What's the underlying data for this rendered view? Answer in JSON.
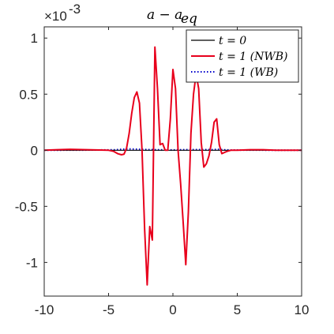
{
  "chart_data": {
    "type": "line",
    "title": "a − a_eq",
    "title_main": "a − a",
    "title_sub": "eq",
    "y_multiplier": "×10",
    "y_exponent": "-3",
    "xlim": [
      -10,
      10
    ],
    "ylim": [
      -1.3,
      1.1
    ],
    "x_ticks": [
      -10,
      -5,
      0,
      5,
      10
    ],
    "x_tick_labels": [
      "-10",
      "-5",
      "0",
      "5",
      "10"
    ],
    "y_ticks": [
      1,
      0.5,
      0,
      -0.5,
      -1
    ],
    "y_tick_labels": [
      "1",
      "0.5",
      "0",
      "-0.5",
      "-1"
    ],
    "grid": false,
    "legend_position": "top-right",
    "series": [
      {
        "name": "t = 0",
        "color": "#000000",
        "style": "solid",
        "x": [
          -10,
          10
        ],
        "y": [
          0,
          0
        ]
      },
      {
        "name": "t = 1 (NWB)",
        "color": "#e8001c",
        "style": "solid",
        "x": [
          -10,
          -9,
          -8,
          -7,
          -6,
          -5,
          -4.6,
          -4.3,
          -4.0,
          -3.8,
          -3.6,
          -3.4,
          -3.2,
          -3.0,
          -2.8,
          -2.6,
          -2.4,
          -2.2,
          -2.0,
          -1.8,
          -1.6,
          -1.4,
          -1.2,
          -1.0,
          -0.8,
          -0.6,
          -0.4,
          -0.2,
          0.0,
          0.2,
          0.4,
          0.6,
          0.8,
          1.0,
          1.2,
          1.4,
          1.6,
          1.8,
          2.0,
          2.2,
          2.4,
          2.6,
          2.8,
          3.0,
          3.2,
          3.4,
          3.6,
          3.8,
          4.0,
          4.2,
          4.5,
          5,
          6,
          7,
          8,
          9,
          10
        ],
        "y": [
          0,
          0.005,
          0.008,
          0.006,
          0.003,
          0,
          -0.01,
          -0.03,
          -0.04,
          -0.035,
          0.02,
          0.15,
          0.33,
          0.47,
          0.52,
          0.42,
          0.0,
          -0.7,
          -1.2,
          -0.68,
          -0.8,
          0.92,
          0.55,
          0.05,
          0.06,
          0.0,
          0.0,
          0.28,
          0.72,
          0.55,
          0.0,
          -0.3,
          -0.65,
          -1.02,
          -0.55,
          0.15,
          0.5,
          0.68,
          0.55,
          0.07,
          -0.15,
          -0.12,
          -0.05,
          0.07,
          0.25,
          0.28,
          0.05,
          -0.03,
          -0.02,
          -0.01,
          0,
          0,
          0.005,
          0.005,
          0,
          0,
          0
        ]
      },
      {
        "name": "t = 1 (WB)",
        "color": "#0000cc",
        "style": "dotted",
        "x": [
          -10,
          -6,
          -4.5,
          -4,
          -3.5,
          -3,
          -2,
          -1,
          0,
          1,
          2,
          3,
          3.5,
          4,
          4.5,
          6,
          10
        ],
        "y": [
          0,
          0.002,
          0.004,
          0.008,
          0.012,
          0.01,
          0.006,
          0.004,
          0.003,
          0.005,
          0.006,
          0.005,
          0.008,
          0.004,
          0.002,
          0.001,
          0
        ]
      }
    ]
  }
}
